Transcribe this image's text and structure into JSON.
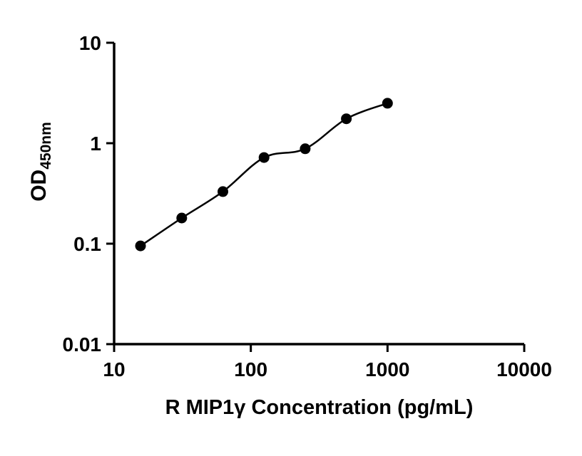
{
  "chart_data": {
    "type": "scatter",
    "title": "",
    "xlabel": "R MIP1γ Concentration (pg/mL)",
    "ylabel_main": "OD",
    "ylabel_sub": "450nm",
    "x": [
      15.6,
      31.25,
      62.5,
      125,
      250,
      500,
      1000
    ],
    "y": [
      0.095,
      0.18,
      0.33,
      0.72,
      0.88,
      1.75,
      2.5
    ],
    "xscale": "log",
    "yscale": "log",
    "xlim": [
      10,
      10000
    ],
    "ylim": [
      0.01,
      10
    ],
    "x_ticks": [
      {
        "value": 10,
        "label": "10"
      },
      {
        "value": 100,
        "label": "100"
      },
      {
        "value": 1000,
        "label": "1000"
      },
      {
        "value": 10000,
        "label": "10000"
      }
    ],
    "y_ticks": [
      {
        "value": 0.01,
        "label": "0.01"
      },
      {
        "value": 0.1,
        "label": "0.1"
      },
      {
        "value": 1,
        "label": "1"
      },
      {
        "value": 10,
        "label": "10"
      }
    ],
    "grid": false,
    "legend": "none",
    "marker_color": "#000000",
    "line_color": "#000000",
    "axis_color": "#000000",
    "background_color": "#ffffff"
  }
}
